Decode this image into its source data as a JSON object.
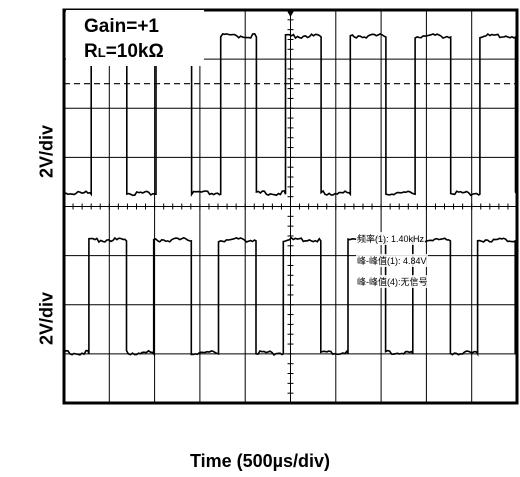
{
  "annotations": {
    "gain": "Gain=+1",
    "rl_prefix": "R",
    "rl_sub": "L",
    "rl_value": "=10kΩ"
  },
  "measurements": [
    "频率(1): 1.40kHz",
    "峰-峰值(1): 4.84V",
    "峰-峰值(4):无信号"
  ],
  "chart_data": {
    "type": "line",
    "title": "",
    "xlabel": "Time (500µs/div)",
    "ylabels": [
      "2V/div",
      "2V/div"
    ],
    "grid": true,
    "divisions": {
      "x": 10,
      "y": 8
    },
    "x_range_divs": [
      0,
      10
    ],
    "series": [
      {
        "channel": "top",
        "kind": "square",
        "reference_level_div": 6.5,
        "high_div": 7.45,
        "low_div": 4.25,
        "period_div": 1.43,
        "duty": 0.55,
        "first_rise_div": 0.6
      },
      {
        "channel": "bottom",
        "kind": "square",
        "high_div": 3.3,
        "low_div": 1.0,
        "period_div": 1.43,
        "duty": 0.58,
        "first_rise_div": 0.55
      }
    ]
  },
  "colors": {
    "trace": "#000000",
    "grid": "#000000",
    "frame": "#000000",
    "background": "#ffffff"
  }
}
